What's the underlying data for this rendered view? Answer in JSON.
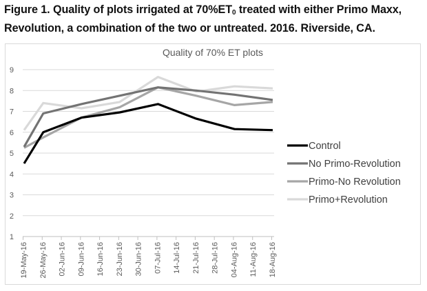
{
  "caption": {
    "prefix": "Figure 1. Quality of plots irrigated at 70%ET",
    "subscript": "0",
    "suffix": " treated with either Primo Maxx, Revolution, a combination of the two or untreated. 2016. Riverside, CA."
  },
  "chart_data": {
    "type": "line",
    "title": "Quality of 70% ET plots",
    "xlabel": "",
    "ylabel": "",
    "ylim": [
      1,
      9
    ],
    "yticks": [
      "1",
      "2",
      "3",
      "4",
      "5",
      "6",
      "7",
      "8",
      "9"
    ],
    "grid": true,
    "legend_position": "right",
    "categories": [
      "19-May-16",
      "26-May-16",
      "02-Jun-16",
      "09-Jun-16",
      "16-Jun-16",
      "23-Jun-16",
      "30-Jun-16",
      "07-Jul-16",
      "14-Jul-16",
      "21-Jul-16",
      "28-Jul-16",
      "04-Aug-16",
      "11-Aug-16",
      "18-Aug-16"
    ],
    "series": [
      {
        "name": "Control",
        "color": "#000000",
        "points": [
          [
            "19-May-16",
            4.5
          ],
          [
            "26-May-16",
            6.0
          ],
          [
            "09-Jun-16",
            6.7
          ],
          [
            "23-Jun-16",
            6.95
          ],
          [
            "07-Jul-16",
            7.35
          ],
          [
            "21-Jul-16",
            6.65
          ],
          [
            "04-Aug-16",
            6.15
          ],
          [
            "18-Aug-16",
            6.1
          ]
        ]
      },
      {
        "name": "No Primo-Revolution",
        "color": "#737373",
        "points": [
          [
            "19-May-16",
            5.3
          ],
          [
            "26-May-16",
            6.9
          ],
          [
            "09-Jun-16",
            7.35
          ],
          [
            "23-Jun-16",
            7.75
          ],
          [
            "07-Jul-16",
            8.15
          ],
          [
            "21-Jul-16",
            8.0
          ],
          [
            "04-Aug-16",
            7.8
          ],
          [
            "18-Aug-16",
            7.55
          ]
        ]
      },
      {
        "name": "Primo-No Revolution",
        "color": "#a6a6a6",
        "points": [
          [
            "19-May-16",
            5.25
          ],
          [
            "26-May-16",
            5.75
          ],
          [
            "09-Jun-16",
            6.7
          ],
          [
            "23-Jun-16",
            7.2
          ],
          [
            "07-Jul-16",
            8.15
          ],
          [
            "21-Jul-16",
            7.75
          ],
          [
            "04-Aug-16",
            7.3
          ],
          [
            "18-Aug-16",
            7.45
          ]
        ]
      },
      {
        "name": "Primo+Revolution",
        "color": "#d9d9d9",
        "points": [
          [
            "19-May-16",
            6.1
          ],
          [
            "26-May-16",
            7.4
          ],
          [
            "09-Jun-16",
            7.15
          ],
          [
            "23-Jun-16",
            7.45
          ],
          [
            "07-Jul-16",
            8.65
          ],
          [
            "21-Jul-16",
            7.95
          ],
          [
            "04-Aug-16",
            8.2
          ],
          [
            "18-Aug-16",
            8.1
          ]
        ]
      }
    ]
  }
}
